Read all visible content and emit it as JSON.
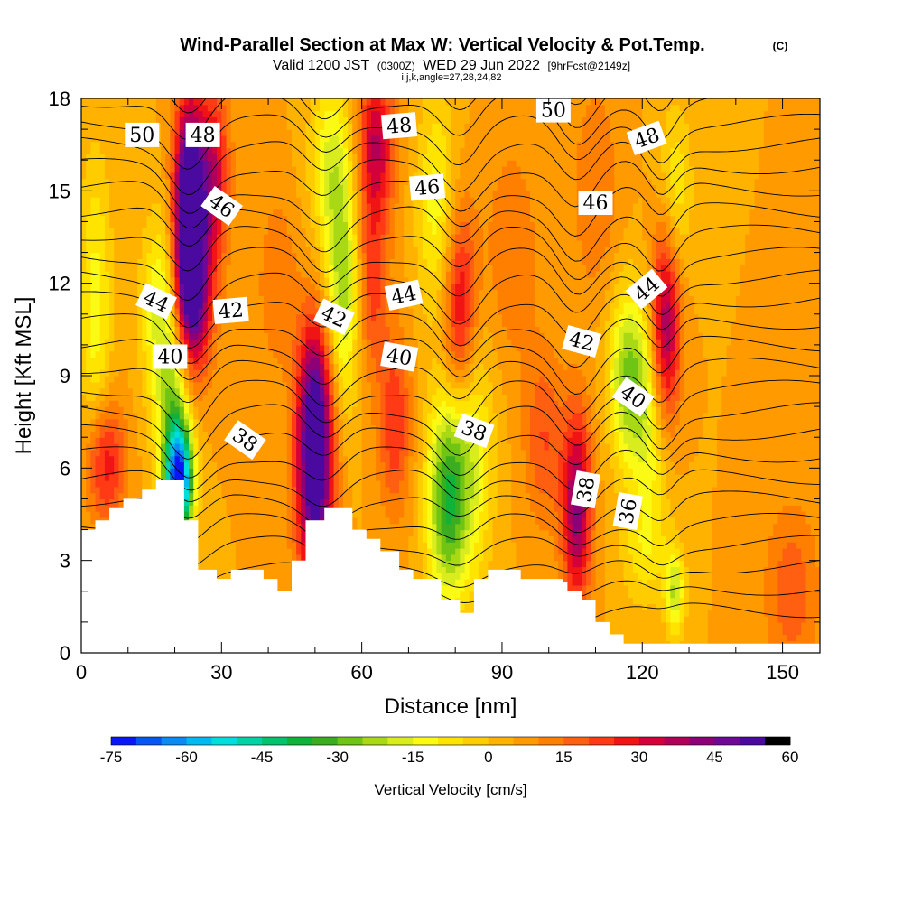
{
  "header": {
    "title": "Wind-Parallel Section at Max W: Vertical Velocity & Pot.Temp.",
    "copyright": "(C)",
    "valid_prefix": "Valid 1200 JST",
    "valid_utc": "(0300Z)",
    "valid_date": "WED 29 Jun 2022",
    "forecast": "[9hrFcst@2149z]",
    "grid_info": "i,j,k,angle=27,28,24,82"
  },
  "chart_data": {
    "type": "heatmap",
    "xlabel": "Distance [nm]",
    "ylabel": "Height [Kft MSL]",
    "xlim": [
      0,
      158
    ],
    "ylim": [
      0,
      18
    ],
    "x_ticks": [
      0,
      30,
      60,
      90,
      120,
      150
    ],
    "y_ticks": [
      0,
      3,
      6,
      9,
      12,
      15,
      18
    ],
    "colorbar": {
      "label": "Vertical Velocity [cm/s]",
      "min": -75,
      "max": 60,
      "step": 5,
      "ticks": [
        -75,
        -60,
        -45,
        -30,
        -15,
        0,
        15,
        30,
        45,
        60
      ],
      "colors": [
        "#0a16f5",
        "#0656f2",
        "#0a8bf2",
        "#00b9f0",
        "#00dddd",
        "#00d2a6",
        "#00c36a",
        "#10b33a",
        "#3aae20",
        "#70c414",
        "#a8d914",
        "#d8ec1e",
        "#fafa14",
        "#ffe400",
        "#ffcc00",
        "#ffb300",
        "#ff9a00",
        "#ff7f00",
        "#ff5f10",
        "#ff3a14",
        "#f01414",
        "#d4003c",
        "#b0005a",
        "#8c0078",
        "#6e0896",
        "#4a0aa0"
      ]
    },
    "terrain": [
      [
        0,
        4
      ],
      [
        3,
        4
      ],
      [
        3,
        4.3
      ],
      [
        6,
        4.3
      ],
      [
        6,
        4.7
      ],
      [
        9,
        4.7
      ],
      [
        9,
        5
      ],
      [
        13,
        5
      ],
      [
        13,
        5.3
      ],
      [
        16,
        5.3
      ],
      [
        16,
        5.6
      ],
      [
        22,
        5.6
      ],
      [
        22,
        4.3
      ],
      [
        25,
        4.3
      ],
      [
        25,
        2.7
      ],
      [
        29,
        2.7
      ],
      [
        29,
        2.4
      ],
      [
        32,
        2.4
      ],
      [
        32,
        2.7
      ],
      [
        39,
        2.7
      ],
      [
        39,
        2.4
      ],
      [
        42,
        2.4
      ],
      [
        42,
        2
      ],
      [
        45,
        2
      ],
      [
        45,
        3
      ],
      [
        48,
        3
      ],
      [
        48,
        4.3
      ],
      [
        52,
        4.3
      ],
      [
        52,
        4.7
      ],
      [
        58,
        4.7
      ],
      [
        58,
        4
      ],
      [
        61,
        4
      ],
      [
        61,
        3.7
      ],
      [
        64,
        3.7
      ],
      [
        64,
        3.3
      ],
      [
        68,
        3.3
      ],
      [
        68,
        2.7
      ],
      [
        71,
        2.7
      ],
      [
        71,
        2.4
      ],
      [
        77,
        2.4
      ],
      [
        77,
        1.7
      ],
      [
        81,
        1.7
      ],
      [
        81,
        1.3
      ],
      [
        84,
        1.3
      ],
      [
        84,
        2.4
      ],
      [
        87,
        2.4
      ],
      [
        87,
        2.7
      ],
      [
        94,
        2.7
      ],
      [
        94,
        2.4
      ],
      [
        103,
        2.4
      ],
      [
        103,
        2.3
      ],
      [
        104,
        2.3
      ],
      [
        104,
        2
      ],
      [
        107,
        2
      ],
      [
        107,
        1.7
      ],
      [
        110,
        1.7
      ],
      [
        110,
        1
      ],
      [
        113,
        1
      ],
      [
        113,
        0.6
      ],
      [
        116,
        0.6
      ],
      [
        116,
        0.3
      ],
      [
        158,
        0.3
      ]
    ],
    "w_features": [
      {
        "x": 23,
        "y": 14.5,
        "sx": 2.2,
        "sy": 2.4,
        "w": 62
      },
      {
        "x": 24,
        "y": 11.5,
        "sx": 2.8,
        "sy": 1.8,
        "w": 38
      },
      {
        "x": 28,
        "y": 15.5,
        "sx": 2.5,
        "sy": 2.0,
        "w": 30
      },
      {
        "x": 21,
        "y": 5.5,
        "sx": 2.0,
        "sy": 1.2,
        "w": -60
      },
      {
        "x": 20,
        "y": 7,
        "sx": 2.5,
        "sy": 2.2,
        "w": -32
      },
      {
        "x": 17,
        "y": 11,
        "sx": 3.0,
        "sy": 2.2,
        "w": -22
      },
      {
        "x": 3,
        "y": 11,
        "sx": 2.5,
        "sy": 3.5,
        "w": -18
      },
      {
        "x": 5,
        "y": 6.2,
        "sx": 3.0,
        "sy": 1.5,
        "w": 26
      },
      {
        "x": 50,
        "y": 5.5,
        "sx": 2.8,
        "sy": 2.5,
        "w": 48
      },
      {
        "x": 50,
        "y": 8.5,
        "sx": 2.6,
        "sy": 2.0,
        "w": 28
      },
      {
        "x": 56,
        "y": 12,
        "sx": 2.6,
        "sy": 2.8,
        "w": -28
      },
      {
        "x": 53,
        "y": 16,
        "sx": 3.0,
        "sy": 2.0,
        "w": -18
      },
      {
        "x": 63,
        "y": 16.5,
        "sx": 2.8,
        "sy": 1.8,
        "w": 30
      },
      {
        "x": 62,
        "y": 12,
        "sx": 2.4,
        "sy": 2.0,
        "w": 18
      },
      {
        "x": 78,
        "y": 5,
        "sx": 3.0,
        "sy": 2.4,
        "w": -35
      },
      {
        "x": 83,
        "y": 6.5,
        "sx": 3.5,
        "sy": 3.0,
        "w": -22
      },
      {
        "x": 76,
        "y": 14.5,
        "sx": 3.0,
        "sy": 2.5,
        "w": -18
      },
      {
        "x": 81,
        "y": 11,
        "sx": 2.6,
        "sy": 2.4,
        "w": 30
      },
      {
        "x": 106,
        "y": 4.7,
        "sx": 2.2,
        "sy": 2.2,
        "w": 38
      },
      {
        "x": 117,
        "y": 9,
        "sx": 3.0,
        "sy": 2.0,
        "w": -30
      },
      {
        "x": 122,
        "y": 7,
        "sx": 3.0,
        "sy": 2.5,
        "w": -18
      },
      {
        "x": 125,
        "y": 10.5,
        "sx": 2.2,
        "sy": 2.4,
        "w": 38
      },
      {
        "x": 120,
        "y": 3.2,
        "sx": 3.5,
        "sy": 1.2,
        "w": -10
      },
      {
        "x": 127,
        "y": 2,
        "sx": 1.5,
        "sy": 1.0,
        "w": -25
      },
      {
        "x": 127,
        "y": 15,
        "sx": 2.5,
        "sy": 2.0,
        "w": -15
      },
      {
        "x": 110,
        "y": 15,
        "sx": 3.5,
        "sy": 2.5,
        "w": 10
      },
      {
        "x": 152,
        "y": 2,
        "sx": 4.0,
        "sy": 2.0,
        "w": 14
      },
      {
        "x": 42,
        "y": 12,
        "sx": 3.0,
        "sy": 2.0,
        "w": 10
      },
      {
        "x": 92,
        "y": 13,
        "sx": 4.0,
        "sy": 2.5,
        "w": 10
      },
      {
        "x": 99,
        "y": 7,
        "sx": 3.0,
        "sy": 2.0,
        "w": 15
      },
      {
        "x": 67,
        "y": 7.5,
        "sx": 2.5,
        "sy": 2.0,
        "w": 20
      }
    ],
    "contour_labels": [
      {
        "text": "50",
        "x": 13,
        "y": 16.8,
        "angle": 0
      },
      {
        "text": "48",
        "x": 26,
        "y": 16.8,
        "angle": 0
      },
      {
        "text": "48",
        "x": 68,
        "y": 17.1,
        "angle": -5
      },
      {
        "text": "50",
        "x": 101,
        "y": 17.6,
        "angle": 0
      },
      {
        "text": "48",
        "x": 121,
        "y": 16.7,
        "angle": -20
      },
      {
        "text": "46",
        "x": 30,
        "y": 14.5,
        "angle": 35
      },
      {
        "text": "46",
        "x": 74,
        "y": 15.1,
        "angle": -5
      },
      {
        "text": "46",
        "x": 110,
        "y": 14.6,
        "angle": 0
      },
      {
        "text": "44",
        "x": 16,
        "y": 11.4,
        "angle": 25
      },
      {
        "text": "42",
        "x": 32,
        "y": 11.1,
        "angle": -5
      },
      {
        "text": "42",
        "x": 54,
        "y": 10.9,
        "angle": 25
      },
      {
        "text": "44",
        "x": 69,
        "y": 11.6,
        "angle": -12
      },
      {
        "text": "44",
        "x": 121,
        "y": 11.8,
        "angle": -40
      },
      {
        "text": "40",
        "x": 19,
        "y": 9.6,
        "angle": 0
      },
      {
        "text": "40",
        "x": 68,
        "y": 9.6,
        "angle": 10
      },
      {
        "text": "42",
        "x": 107,
        "y": 10.1,
        "angle": 15
      },
      {
        "text": "40",
        "x": 118,
        "y": 8.3,
        "angle": 35
      },
      {
        "text": "38",
        "x": 35,
        "y": 6.9,
        "angle": 35
      },
      {
        "text": "38",
        "x": 84,
        "y": 7.2,
        "angle": 20
      },
      {
        "text": "38",
        "x": 108,
        "y": 5.3,
        "angle": -80
      },
      {
        "text": "36",
        "x": 117,
        "y": 4.6,
        "angle": -80
      }
    ]
  },
  "colors": {
    "background": "#ffffff",
    "frame": "#000000",
    "contour": "#000000",
    "terrain": "#ffffff"
  }
}
